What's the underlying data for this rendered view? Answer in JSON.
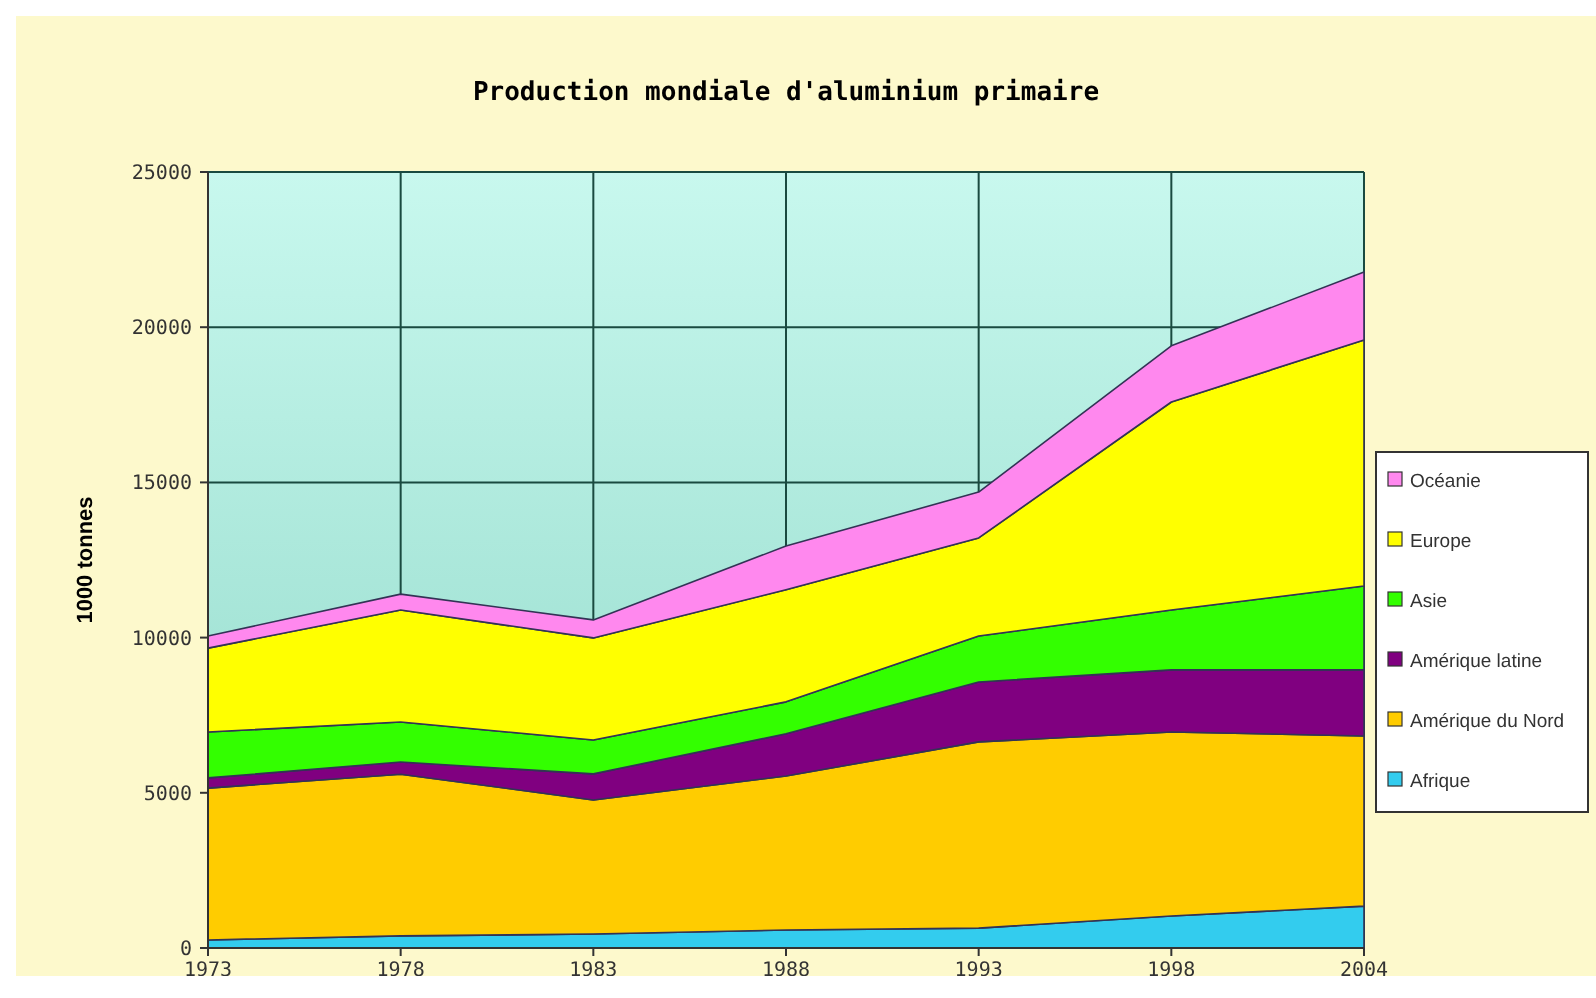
{
  "chart_data": {
    "type": "area",
    "stacked": true,
    "title": "Production mondiale d'aluminium primaire",
    "ylabel": "1000 tonnes",
    "categories": [
      "1973",
      "1978",
      "1983",
      "1988",
      "1993",
      "1998",
      "2004"
    ],
    "series": [
      {
        "name": "Afrique",
        "color": "#33ccee",
        "values": [
          260,
          390,
          450,
          580,
          640,
          1030,
          1350
        ]
      },
      {
        "name": "Amérique du Nord",
        "color": "#ffcc00",
        "values": [
          4890,
          5210,
          4320,
          4960,
          6000,
          5930,
          5480
        ]
      },
      {
        "name": "Amérique latine",
        "color": "#800080",
        "values": [
          330,
          390,
          840,
          1360,
          1930,
          2000,
          2130
        ]
      },
      {
        "name": "Asie",
        "color": "#33ff00",
        "values": [
          1480,
          1290,
          1090,
          1030,
          1480,
          1930,
          2700
        ]
      },
      {
        "name": "Europe",
        "color": "#ffff00",
        "values": [
          2700,
          3610,
          3290,
          3610,
          3160,
          6700,
          7930
        ]
      },
      {
        "name": "Océanie",
        "color": "#ff88ee",
        "values": [
          390,
          510,
          580,
          1410,
          1480,
          1810,
          2190
        ]
      }
    ],
    "ylim": [
      0,
      25000
    ],
    "yticks": [
      0,
      5000,
      10000,
      15000,
      20000,
      25000
    ],
    "grid": true,
    "legend": "right"
  }
}
